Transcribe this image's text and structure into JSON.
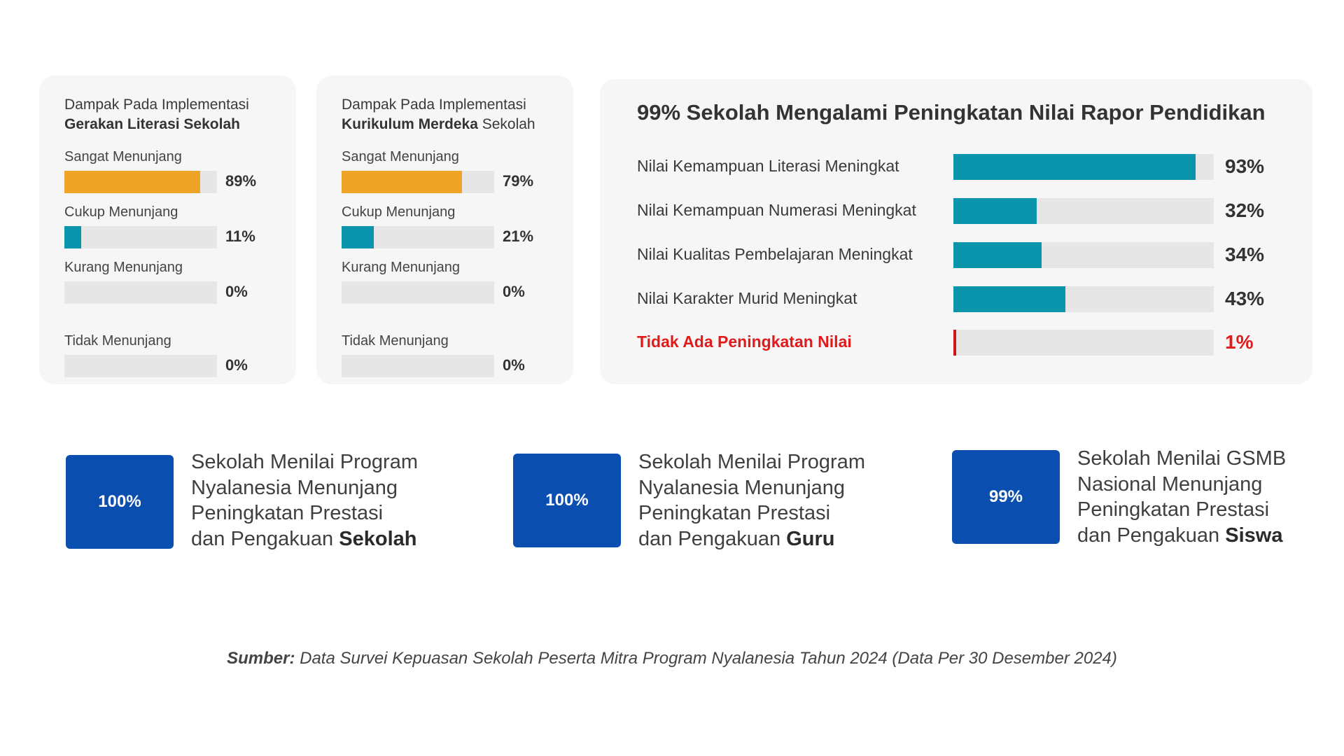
{
  "chart_data": [
    {
      "type": "bar",
      "orientation": "horizontal",
      "title_line1": "Dampak Pada Implementasi",
      "title_bold": "Gerakan Literasi Sekolah",
      "title_plain": "",
      "categories": [
        "Sangat Menunjang",
        "Cukup Menunjang",
        "Kurang Menunjang",
        "Tidak Menunjang"
      ],
      "values": [
        89,
        11,
        0,
        0
      ],
      "value_labels": [
        "89%",
        "11%",
        "0%",
        "0%"
      ],
      "colors": [
        "#eea427",
        "#0b95ad",
        "#0b95ad",
        "#0b95ad"
      ],
      "xlim": [
        0,
        100
      ]
    },
    {
      "type": "bar",
      "orientation": "horizontal",
      "title_line1": "Dampak Pada Implementasi",
      "title_bold": "Kurikulum Merdeka",
      "title_plain": " Sekolah",
      "categories": [
        "Sangat Menunjang",
        "Cukup Menunjang",
        "Kurang Menunjang",
        "Tidak Menunjang"
      ],
      "values": [
        79,
        21,
        0,
        0
      ],
      "value_labels": [
        "79%",
        "21%",
        "0%",
        "0%"
      ],
      "colors": [
        "#eea427",
        "#0b95ad",
        "#0b95ad",
        "#0b95ad"
      ],
      "xlim": [
        0,
        100
      ]
    },
    {
      "type": "bar",
      "orientation": "horizontal",
      "title": "99% Sekolah Mengalami Peningkatan Nilai Rapor Pendidikan",
      "categories": [
        "Nilai Kemampuan Literasi Meningkat",
        "Nilai Kemampuan Numerasi Meningkat",
        "Nilai Kualitas Pembelajaran Meningkat",
        "Nilai Karakter Murid Meningkat",
        "Tidak Ada Peningkatan Nilai"
      ],
      "values": [
        93,
        32,
        34,
        43,
        1
      ],
      "value_labels": [
        "93%",
        "32%",
        "34%",
        "43%",
        "1%"
      ],
      "highlight": [
        false,
        false,
        false,
        false,
        true
      ],
      "colors": {
        "bar": "#0b95ad",
        "negative": "#d0161b"
      },
      "xlim": [
        0,
        100
      ]
    }
  ],
  "stats": [
    {
      "value": "100%",
      "text_lines": [
        "Sekolah Menilai Program",
        "Nyalanesia Menunjang",
        "Peningkatan Prestasi"
      ],
      "last_plain": "dan Pengakuan ",
      "last_bold": "Sekolah"
    },
    {
      "value": "100%",
      "text_lines": [
        "Sekolah Menilai Program",
        "Nyalanesia Menunjang",
        "Peningkatan Prestasi"
      ],
      "last_plain": "dan Pengakuan ",
      "last_bold": "Guru"
    },
    {
      "value": "99%",
      "text_lines": [
        "Sekolah Menilai GSMB",
        "Nasional Menunjang",
        "Peningkatan Prestasi"
      ],
      "last_plain": "dan Pengakuan ",
      "last_bold": "Siswa"
    }
  ],
  "source": {
    "label": "Sumber:",
    "text": " Data Survei Kepuasan Sekolah Peserta Mitra Program Nyalanesia Tahun 2024 (Data Per 30 Desember 2024)"
  },
  "colors": {
    "stat_box": "#0a4fb0",
    "panel": "#f6f6f6",
    "track": "#e6e6e6"
  }
}
